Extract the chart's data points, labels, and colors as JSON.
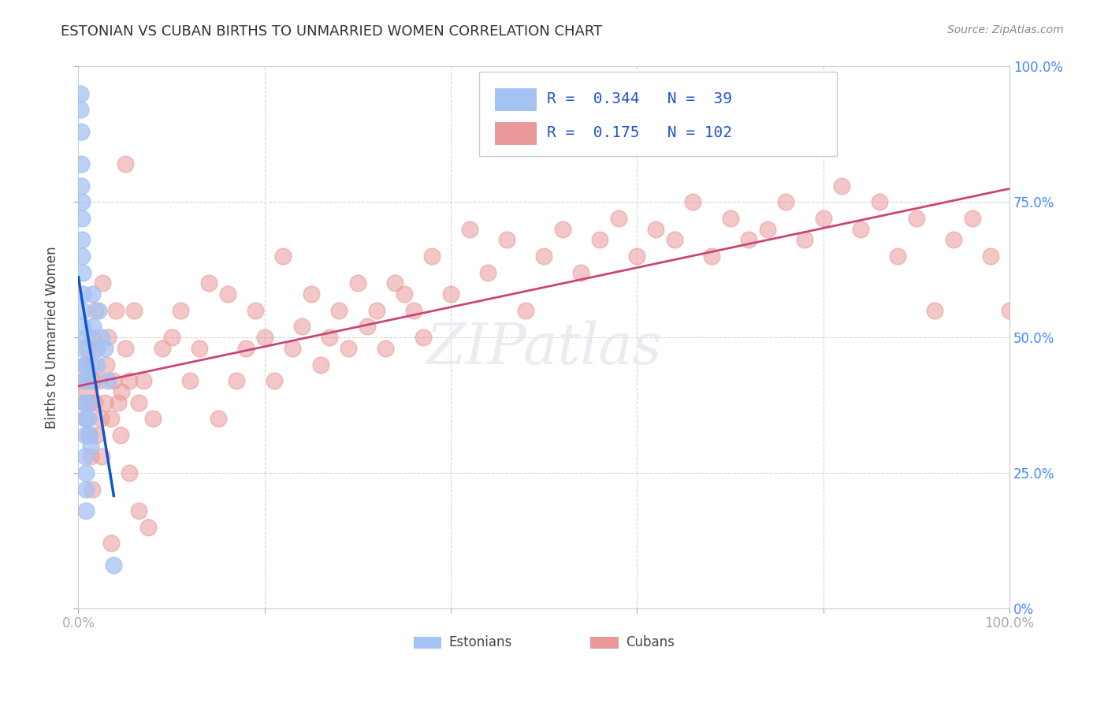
{
  "title": "ESTONIAN VS CUBAN BIRTHS TO UNMARRIED WOMEN CORRELATION CHART",
  "source": "Source: ZipAtlas.com",
  "ylabel": "Births to Unmarried Women",
  "xlim": [
    0.0,
    1.0
  ],
  "ylim": [
    0.0,
    1.0
  ],
  "legend_R_estonian": "0.344",
  "legend_N_estonian": "39",
  "legend_R_cuban": "0.175",
  "legend_N_cuban": "102",
  "estonian_color": "#a4c2f4",
  "cuban_color": "#ea9999",
  "estonian_line_color": "#1155cc",
  "cuban_line_color": "#cc4477",
  "background_color": "#ffffff",
  "grid_color": "#cccccc",
  "estonian_x": [
    0.002,
    0.002,
    0.003,
    0.003,
    0.003,
    0.004,
    0.004,
    0.004,
    0.004,
    0.005,
    0.005,
    0.005,
    0.005,
    0.005,
    0.006,
    0.006,
    0.006,
    0.007,
    0.007,
    0.007,
    0.008,
    0.008,
    0.008,
    0.009,
    0.009,
    0.01,
    0.01,
    0.011,
    0.012,
    0.013,
    0.015,
    0.016,
    0.018,
    0.02,
    0.022,
    0.025,
    0.028,
    0.032,
    0.038
  ],
  "estonian_y": [
    0.95,
    0.92,
    0.88,
    0.82,
    0.78,
    0.75,
    0.72,
    0.68,
    0.65,
    0.62,
    0.58,
    0.55,
    0.52,
    0.48,
    0.45,
    0.42,
    0.38,
    0.35,
    0.32,
    0.28,
    0.25,
    0.22,
    0.18,
    0.5,
    0.45,
    0.42,
    0.38,
    0.35,
    0.32,
    0.3,
    0.58,
    0.52,
    0.48,
    0.45,
    0.55,
    0.5,
    0.48,
    0.42,
    0.08
  ],
  "cuban_x": [
    0.005,
    0.006,
    0.007,
    0.008,
    0.009,
    0.01,
    0.011,
    0.012,
    0.013,
    0.014,
    0.015,
    0.016,
    0.017,
    0.018,
    0.019,
    0.02,
    0.022,
    0.024,
    0.026,
    0.028,
    0.03,
    0.032,
    0.035,
    0.038,
    0.04,
    0.043,
    0.046,
    0.05,
    0.055,
    0.06,
    0.065,
    0.07,
    0.08,
    0.09,
    0.1,
    0.11,
    0.12,
    0.13,
    0.14,
    0.15,
    0.16,
    0.17,
    0.18,
    0.19,
    0.2,
    0.21,
    0.22,
    0.23,
    0.24,
    0.25,
    0.26,
    0.27,
    0.28,
    0.29,
    0.3,
    0.31,
    0.32,
    0.33,
    0.34,
    0.35,
    0.36,
    0.37,
    0.38,
    0.4,
    0.42,
    0.44,
    0.46,
    0.48,
    0.5,
    0.52,
    0.54,
    0.56,
    0.58,
    0.6,
    0.62,
    0.64,
    0.66,
    0.68,
    0.7,
    0.72,
    0.74,
    0.76,
    0.78,
    0.8,
    0.82,
    0.84,
    0.86,
    0.88,
    0.9,
    0.92,
    0.94,
    0.96,
    0.98,
    1.0,
    0.05,
    0.025,
    0.035,
    0.015,
    0.045,
    0.055,
    0.065,
    0.075
  ],
  "cuban_y": [
    0.42,
    0.38,
    0.45,
    0.35,
    0.4,
    0.48,
    0.32,
    0.38,
    0.28,
    0.45,
    0.5,
    0.42,
    0.38,
    0.55,
    0.32,
    0.48,
    0.42,
    0.35,
    0.6,
    0.38,
    0.45,
    0.5,
    0.35,
    0.42,
    0.55,
    0.38,
    0.4,
    0.48,
    0.42,
    0.55,
    0.38,
    0.42,
    0.35,
    0.48,
    0.5,
    0.55,
    0.42,
    0.48,
    0.6,
    0.35,
    0.58,
    0.42,
    0.48,
    0.55,
    0.5,
    0.42,
    0.65,
    0.48,
    0.52,
    0.58,
    0.45,
    0.5,
    0.55,
    0.48,
    0.6,
    0.52,
    0.55,
    0.48,
    0.6,
    0.58,
    0.55,
    0.5,
    0.65,
    0.58,
    0.7,
    0.62,
    0.68,
    0.55,
    0.65,
    0.7,
    0.62,
    0.68,
    0.72,
    0.65,
    0.7,
    0.68,
    0.75,
    0.65,
    0.72,
    0.68,
    0.7,
    0.75,
    0.68,
    0.72,
    0.78,
    0.7,
    0.75,
    0.65,
    0.72,
    0.55,
    0.68,
    0.72,
    0.65,
    0.55,
    0.82,
    0.28,
    0.12,
    0.22,
    0.32,
    0.25,
    0.18,
    0.15
  ]
}
